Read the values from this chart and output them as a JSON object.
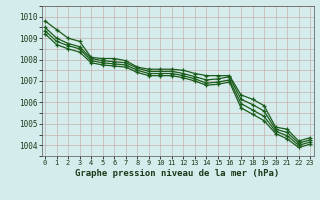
{
  "xlabel": "Graphe pression niveau de la mer (hPa)",
  "ylim": [
    1003.5,
    1010.5
  ],
  "xlim": [
    -0.3,
    23.3
  ],
  "yticks": [
    1004,
    1005,
    1006,
    1007,
    1008,
    1009,
    1010
  ],
  "xticks": [
    0,
    1,
    2,
    3,
    4,
    5,
    6,
    7,
    8,
    9,
    10,
    11,
    12,
    13,
    14,
    15,
    16,
    17,
    18,
    19,
    20,
    21,
    22,
    23
  ],
  "background_color": "#d4ecec",
  "grid_color_major": "#c8b8b8",
  "grid_color_minor": "#c8b8b8",
  "line_color": "#1a5c1a",
  "series": [
    [
      1009.8,
      1009.4,
      1009.0,
      1008.85,
      1008.1,
      1008.05,
      1008.05,
      1007.95,
      1007.65,
      1007.55,
      1007.55,
      1007.55,
      1007.5,
      1007.35,
      1007.25,
      1007.25,
      1007.25,
      1006.35,
      1006.15,
      1005.85,
      1004.85,
      1004.75,
      1004.2,
      1004.35
    ],
    [
      1009.5,
      1009.0,
      1008.75,
      1008.6,
      1008.05,
      1007.95,
      1007.9,
      1007.85,
      1007.6,
      1007.45,
      1007.45,
      1007.45,
      1007.35,
      1007.2,
      1007.05,
      1007.1,
      1007.2,
      1006.15,
      1005.9,
      1005.6,
      1004.75,
      1004.6,
      1004.1,
      1004.25
    ],
    [
      1009.35,
      1008.85,
      1008.65,
      1008.5,
      1007.95,
      1007.85,
      1007.8,
      1007.75,
      1007.5,
      1007.35,
      1007.35,
      1007.35,
      1007.25,
      1007.1,
      1006.9,
      1006.95,
      1007.05,
      1005.95,
      1005.65,
      1005.35,
      1004.65,
      1004.45,
      1004.0,
      1004.15
    ],
    [
      1009.2,
      1008.7,
      1008.5,
      1008.35,
      1007.85,
      1007.75,
      1007.7,
      1007.65,
      1007.4,
      1007.25,
      1007.25,
      1007.25,
      1007.15,
      1007.0,
      1006.8,
      1006.85,
      1006.95,
      1005.75,
      1005.45,
      1005.15,
      1004.55,
      1004.3,
      1003.9,
      1004.05
    ]
  ]
}
